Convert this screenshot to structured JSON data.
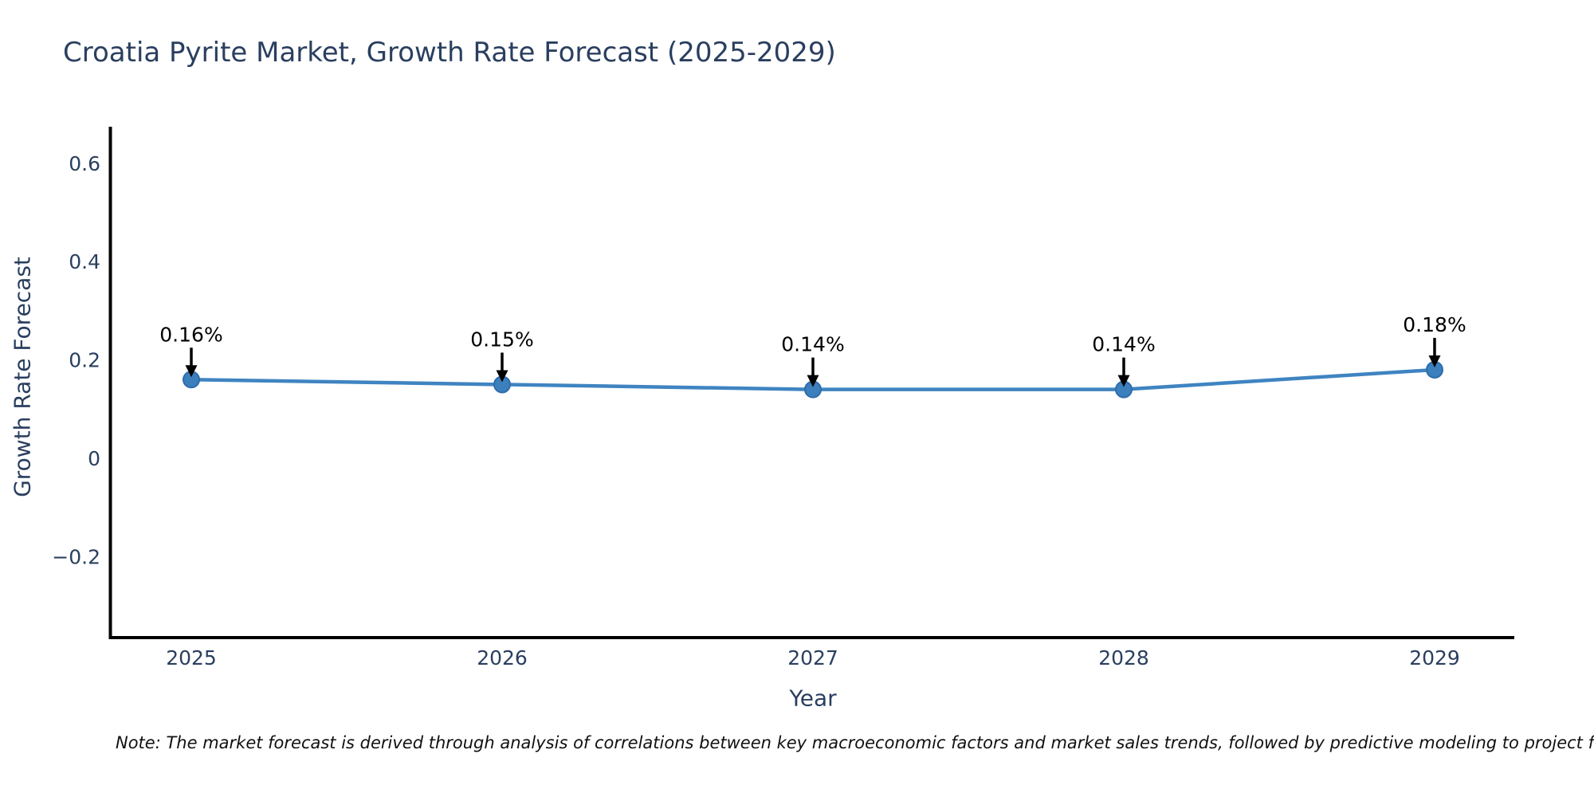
{
  "chart_data": {
    "type": "line",
    "title": "Croatia Pyrite Market, Growth Rate Forecast (2025-2029)",
    "xlabel": "Year",
    "ylabel": "Growth Rate Forecast",
    "categories": [
      "2025",
      "2026",
      "2027",
      "2028",
      "2029"
    ],
    "values": [
      0.16,
      0.15,
      0.14,
      0.14,
      0.18
    ],
    "point_labels": [
      "0.16%",
      "0.15%",
      "0.14%",
      "0.14%",
      "0.18%"
    ],
    "yticks": [
      {
        "v": -0.2,
        "label": "−0.2"
      },
      {
        "v": 0,
        "label": "0"
      },
      {
        "v": 0.2,
        "label": "0.2"
      },
      {
        "v": 0.4,
        "label": "0.4"
      },
      {
        "v": 0.6,
        "label": "0.6"
      }
    ],
    "ylim": [
      -0.36,
      0.67
    ],
    "grid": false,
    "legend": false,
    "note": "Note: The market forecast is derived through analysis of correlations between key macroeconomic factors and market sales trends, followed by predictive modeling to project future sa",
    "colors": {
      "line": "#3f84c1",
      "marker": "#3c7fbd",
      "marker_edge": "#2e6cab",
      "annotation": "#000000",
      "axis": "#000000",
      "text": "#2a3f5f"
    }
  }
}
